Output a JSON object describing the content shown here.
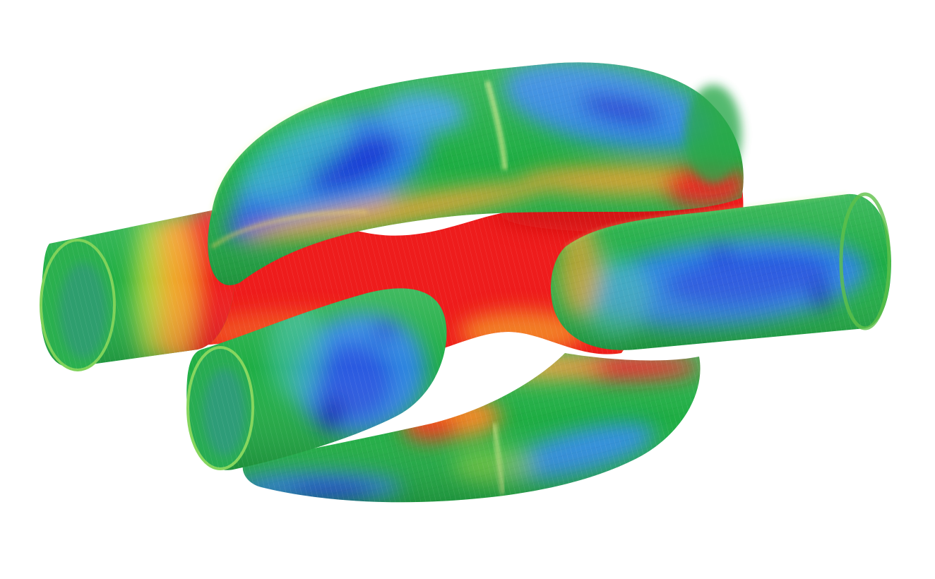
{
  "figure": {
    "subject": "fea-chain-link-stress-contour",
    "contour_colors": {
      "low": "#1a2fd0",
      "low_mid": "#2f86e0",
      "mid": "#22b83a",
      "mid_high": "#9ad63a",
      "high_mid": "#f0a030",
      "high": "#ee1c1c"
    }
  }
}
